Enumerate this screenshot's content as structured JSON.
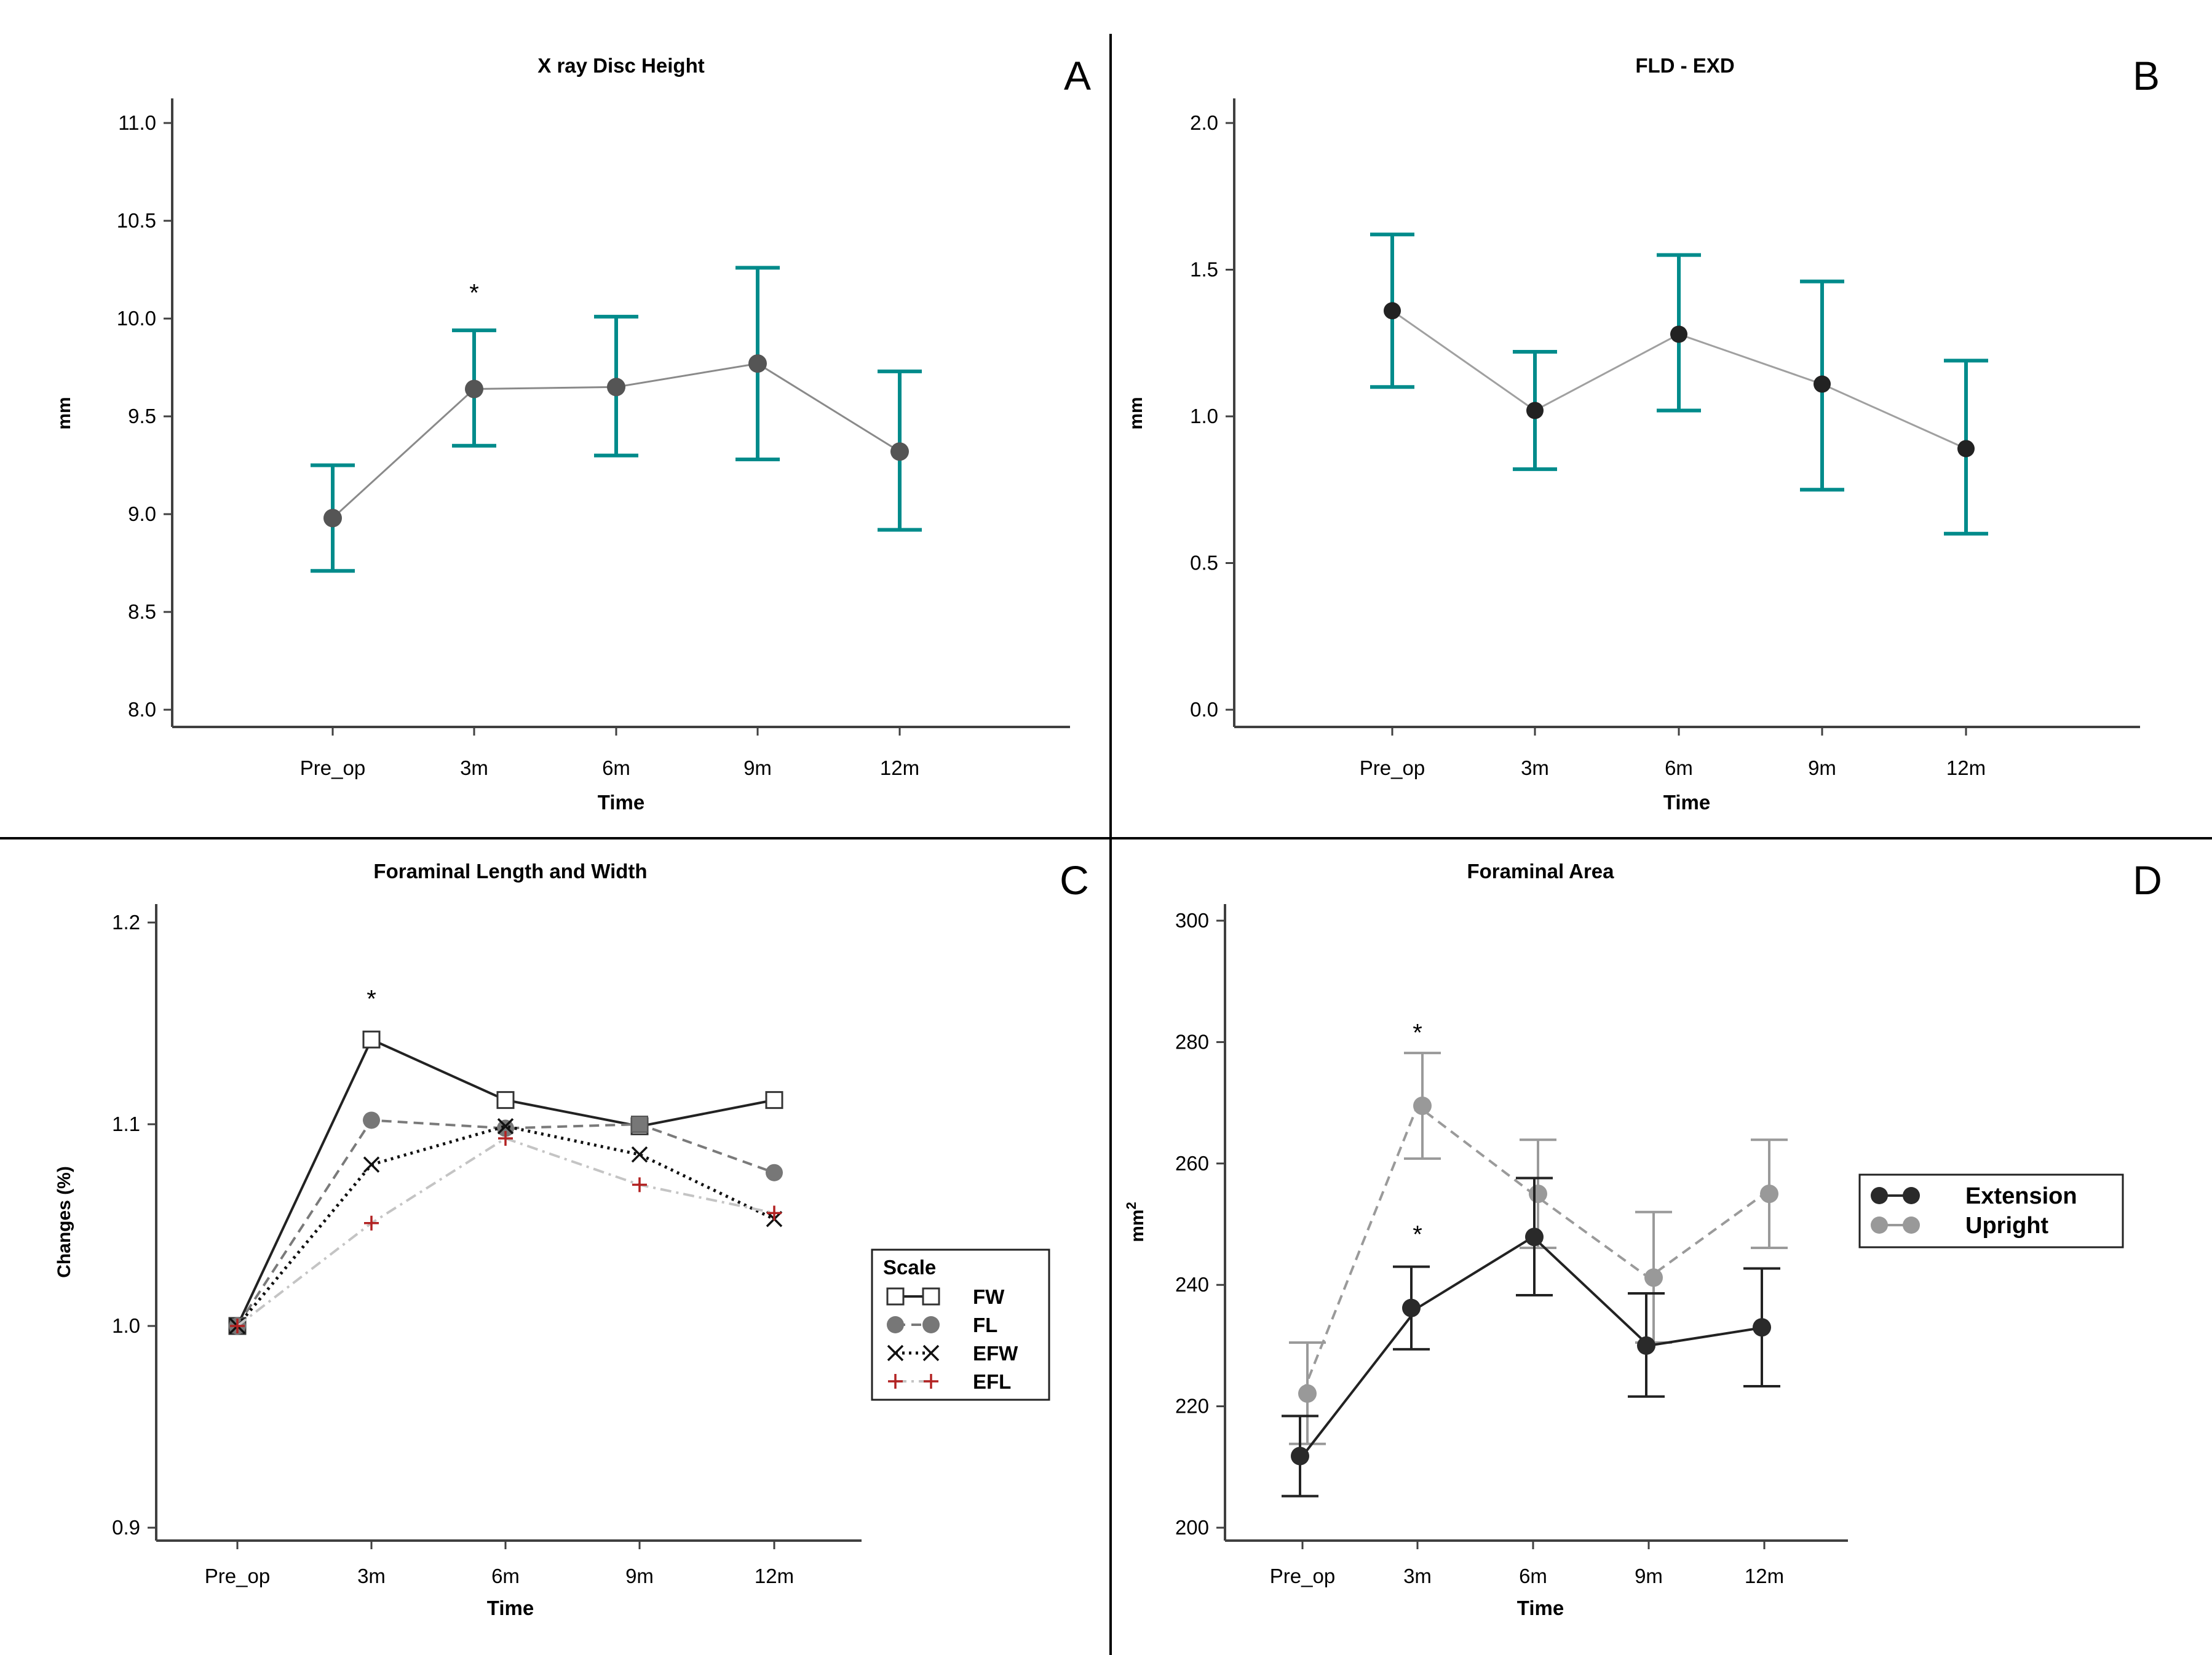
{
  "colors": {
    "teal": "#008b8b",
    "axis": "#404040",
    "dark_point": "#333333",
    "grey_point": "#808080",
    "light_grey": "#9e9e9e",
    "red_plus": "#b22222",
    "divider": "#000000"
  },
  "panel_labels": [
    "A",
    "B",
    "C",
    "D"
  ],
  "chart_data": [
    {
      "id": "A",
      "type": "line",
      "title": "X ray Disc Height",
      "xlabel": "Time",
      "ylabel": "mm",
      "categories": [
        "Pre_op",
        "3m",
        "6m",
        "9m",
        "12m"
      ],
      "ylim": [
        8.0,
        11.0
      ],
      "yticks": [
        "8.0",
        "8.5",
        "9.0",
        "9.5",
        "10.0",
        "10.5",
        "11.0"
      ],
      "series": [
        {
          "name": "Disc Height",
          "values": [
            8.98,
            9.64,
            9.65,
            9.77,
            9.32
          ],
          "err_low": [
            8.71,
            9.35,
            9.3,
            9.28,
            8.92
          ],
          "err_high": [
            9.25,
            9.94,
            10.01,
            10.26,
            9.73
          ]
        }
      ],
      "annotations": [
        {
          "text": "*",
          "category": "3m",
          "y": 10.14
        }
      ]
    },
    {
      "id": "B",
      "type": "line",
      "title": "FLD - EXD",
      "xlabel": "Time",
      "ylabel": "mm",
      "categories": [
        "Pre_op",
        "3m",
        "6m",
        "9m",
        "12m"
      ],
      "ylim": [
        0.0,
        2.0
      ],
      "yticks": [
        "0.0",
        "0.5",
        "1.0",
        "1.5",
        "2.0"
      ],
      "series": [
        {
          "name": "FLD - EXD",
          "values": [
            1.36,
            1.02,
            1.28,
            1.11,
            0.89
          ],
          "err_low": [
            1.1,
            0.82,
            1.02,
            0.75,
            0.6
          ],
          "err_high": [
            1.62,
            1.22,
            1.55,
            1.46,
            1.19
          ]
        }
      ]
    },
    {
      "id": "C",
      "type": "line",
      "title": "Foraminal Length and Width",
      "xlabel": "Time",
      "ylabel": "Changes (%)",
      "categories": [
        "Pre_op",
        "3m",
        "6m",
        "9m",
        "12m"
      ],
      "ylim": [
        0.9,
        1.2
      ],
      "yticks": [
        "0.9",
        "1.0",
        "1.1",
        "1.2"
      ],
      "legend": {
        "title": "Scale",
        "position": "right"
      },
      "series": [
        {
          "name": "FW",
          "values": [
            1.0,
            1.142,
            1.112,
            1.099,
            1.112
          ]
        },
        {
          "name": "FL",
          "values": [
            1.0,
            1.102,
            1.098,
            1.1,
            1.076
          ]
        },
        {
          "name": "EFW",
          "values": [
            1.0,
            1.08,
            1.099,
            1.085,
            1.053
          ]
        },
        {
          "name": "EFL",
          "values": [
            1.0,
            1.051,
            1.093,
            1.07,
            1.056
          ]
        }
      ],
      "annotations": [
        {
          "text": "*",
          "category": "3m",
          "y": 1.163
        }
      ]
    },
    {
      "id": "D",
      "type": "line",
      "title": "Foraminal Area",
      "xlabel": "Time",
      "ylabel": "mm2",
      "categories": [
        "Pre_op",
        "3m",
        "6m",
        "9m",
        "12m"
      ],
      "ylim": [
        200,
        300
      ],
      "yticks": [
        "200",
        "220",
        "240",
        "260",
        "280",
        "300"
      ],
      "legend": {
        "position": "right"
      },
      "series": [
        {
          "name": "Extension",
          "values": [
            211.8,
            236.2,
            247.9,
            230.0,
            233.0
          ],
          "err_low": [
            205.2,
            229.4,
            238.3,
            221.6,
            223.3
          ],
          "err_high": [
            218.4,
            243.0,
            257.6,
            238.6,
            242.7
          ]
        },
        {
          "name": "Upright",
          "values": [
            222.1,
            269.5,
            255.0,
            241.2,
            255.0
          ],
          "err_low": [
            213.8,
            260.8,
            246.1,
            230.5,
            246.1
          ],
          "err_high": [
            230.5,
            278.2,
            263.9,
            252.0,
            263.9
          ]
        }
      ],
      "annotations": [
        {
          "text": "*",
          "category": "3m",
          "y": 281.8,
          "series": "Upright"
        },
        {
          "text": "*",
          "category": "3m",
          "y": 248.6,
          "series": "Extension"
        }
      ]
    }
  ]
}
